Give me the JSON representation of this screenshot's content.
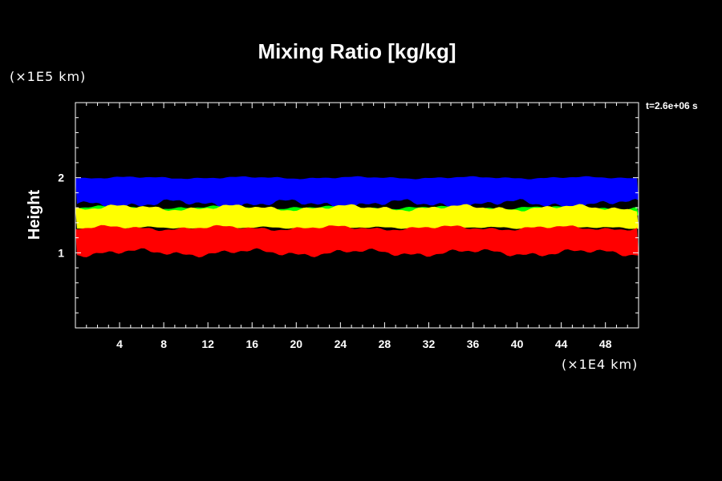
{
  "chart_data": {
    "type": "area",
    "title": "Mixing Ratio [kg/kg]",
    "ylabel": "Height",
    "xlabel": "",
    "y_unit": "(×1E5 km)",
    "x_unit": "(×1E4 km)",
    "time_label": "t=2.6e+06 s",
    "xlim": [
      0,
      51
    ],
    "ylim": [
      0,
      3
    ],
    "x_ticks": [
      4,
      8,
      12,
      16,
      20,
      24,
      28,
      32,
      36,
      40,
      44,
      48
    ],
    "y_ticks": [
      1,
      2
    ],
    "colors": {
      "background": "#000000",
      "axis": "#ffffff"
    },
    "layers": [
      {
        "color": "#0000ff",
        "y_range": [
          1.65,
          2.0
        ]
      },
      {
        "color": "#00ff00",
        "y_range": [
          1.5,
          1.6
        ]
      },
      {
        "color": "#ffff00",
        "y_range": [
          1.33,
          1.6
        ]
      },
      {
        "color": "#ff0000",
        "y_range": [
          1.0,
          1.33
        ]
      }
    ]
  }
}
